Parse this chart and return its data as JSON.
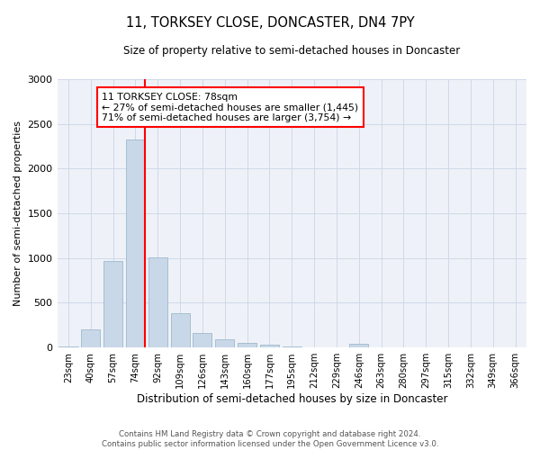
{
  "title": "11, TORKSEY CLOSE, DONCASTER, DN4 7PY",
  "subtitle": "Size of property relative to semi-detached houses in Doncaster",
  "xlabel": "Distribution of semi-detached houses by size in Doncaster",
  "ylabel": "Number of semi-detached properties",
  "categories": [
    "23sqm",
    "40sqm",
    "57sqm",
    "74sqm",
    "92sqm",
    "109sqm",
    "126sqm",
    "143sqm",
    "160sqm",
    "177sqm",
    "195sqm",
    "212sqm",
    "229sqm",
    "246sqm",
    "263sqm",
    "280sqm",
    "297sqm",
    "315sqm",
    "332sqm",
    "349sqm",
    "366sqm"
  ],
  "values": [
    10,
    200,
    970,
    2320,
    1010,
    380,
    160,
    90,
    55,
    30,
    10,
    5,
    3,
    40,
    2,
    2,
    2,
    2,
    2,
    2,
    2
  ],
  "bar_color": "#c8d8e8",
  "bar_edge_color": "#a0b8cc",
  "property_label": "11 TORKSEY CLOSE: 78sqm",
  "pct_smaller": 27,
  "count_smaller": 1445,
  "pct_larger": 71,
  "count_larger": 3754,
  "vline_color": "red",
  "annotation_box_color": "white",
  "annotation_box_edge_color": "red",
  "grid_color": "#d0d8e8",
  "background_color": "#eef2f8",
  "ylim": [
    0,
    3000
  ],
  "yticks": [
    0,
    500,
    1000,
    1500,
    2000,
    2500,
    3000
  ],
  "footer_line1": "Contains HM Land Registry data © Crown copyright and database right 2024.",
  "footer_line2": "Contains public sector information licensed under the Open Government Licence v3.0."
}
